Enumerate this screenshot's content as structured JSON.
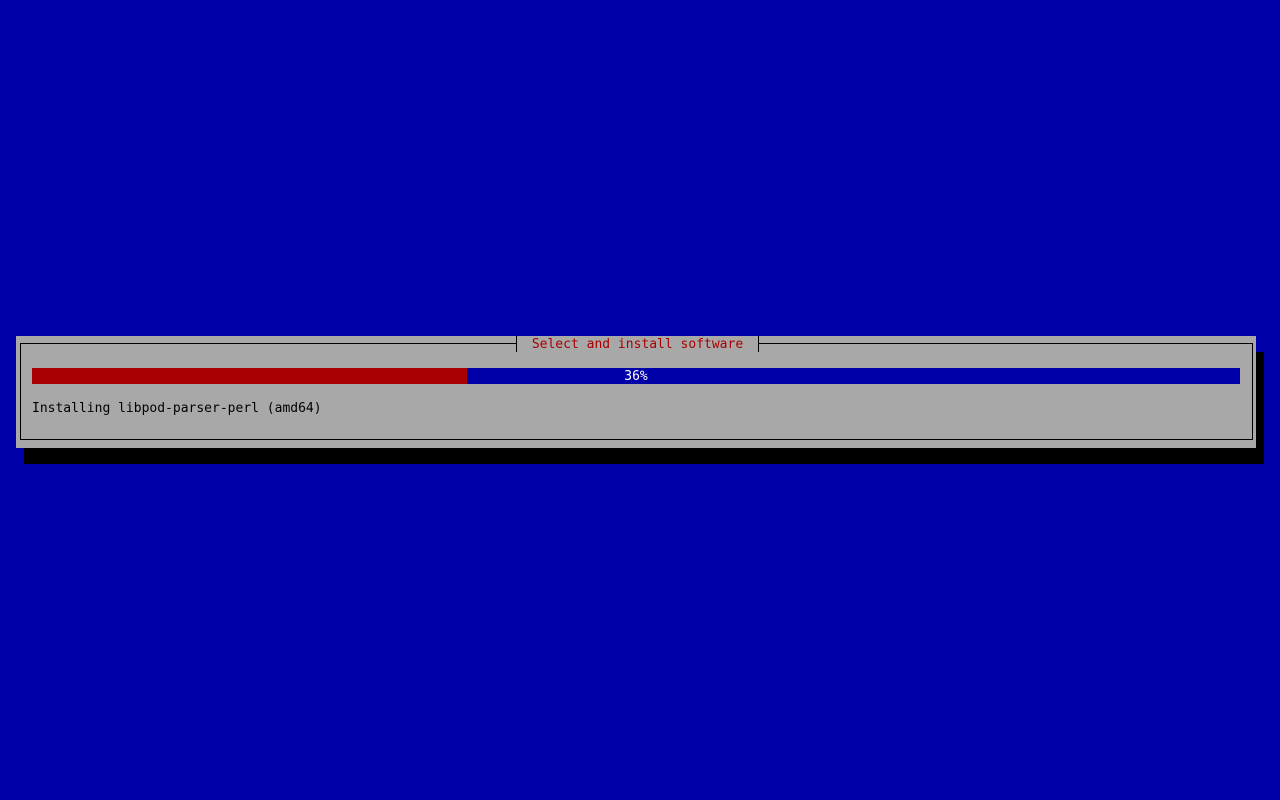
{
  "dialog": {
    "title": "Select and install software",
    "progress": {
      "percent": 36,
      "label": "36%"
    },
    "status": "Installing libpod-parser-perl (amd64)"
  },
  "colors": {
    "background": "#0000a8",
    "dialog": "#a8a8a8",
    "title": "#a80000",
    "progress_fill": "#a80000",
    "progress_track": "#0000a8"
  }
}
